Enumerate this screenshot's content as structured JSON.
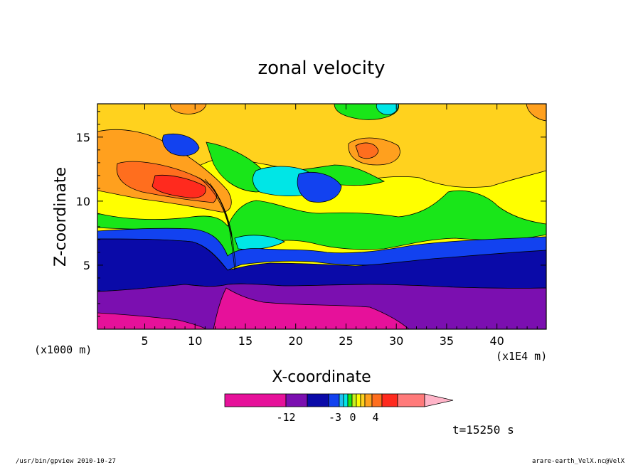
{
  "chart_data": {
    "type": "heatmap",
    "title": "zonal velocity",
    "xlabel": "X-coordinate",
    "ylabel": "Z-coordinate",
    "x_unit_left": "(x1000 m)",
    "x_unit_right": "(x1E4 m)",
    "xlim": [
      0.3,
      44.9
    ],
    "ylim": [
      0,
      17.6
    ],
    "xticks": [
      5,
      10,
      15,
      20,
      25,
      30,
      35,
      40
    ],
    "yticks": [
      5,
      10,
      15
    ],
    "grid": false,
    "colorbar": {
      "colors": [
        "#e6119a",
        "#7b0fb0",
        "#0a0aa8",
        "#1242f0",
        "#1ec0f0",
        "#00e6e6",
        "#19e619",
        "#c8f01e",
        "#ffff00",
        "#ffd21e",
        "#ffa01e",
        "#ff6e1e",
        "#ff2a1e",
        "#ff7a7a",
        "#ffb4c8"
      ],
      "labels": [
        "-12",
        "-3",
        "0",
        "4"
      ],
      "extend": "max"
    },
    "regions": [
      {
        "name": "lower-magenta",
        "level": "-16"
      },
      {
        "name": "purple-layer",
        "level": "-12"
      },
      {
        "name": "dark-blue-layer",
        "level": "-8"
      },
      {
        "name": "green-band",
        "level": "-1"
      },
      {
        "name": "yellow-band",
        "level": "1"
      },
      {
        "name": "orange-jet",
        "level": "3"
      },
      {
        "name": "red-core",
        "level": "6"
      }
    ],
    "time_label": "t=15250 s"
  },
  "footer": {
    "left": "/usr/bin/gpview  2010-10-27",
    "right": "arare-earth_VelX.nc@VelX"
  }
}
